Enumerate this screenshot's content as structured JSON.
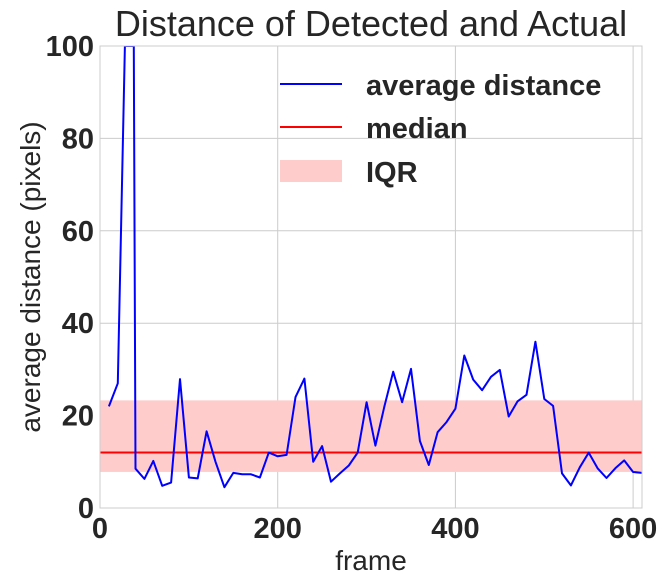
{
  "chart_data": {
    "type": "line",
    "title": "Distance of Detected and Actual",
    "xlabel": "frame",
    "ylabel": "average distance (pixels)",
    "xlim": [
      0,
      610
    ],
    "ylim": [
      0,
      100
    ],
    "x_ticks": [
      0,
      200,
      400,
      600
    ],
    "y_ticks": [
      0,
      20,
      40,
      60,
      80,
      100
    ],
    "grid": true,
    "legend_position": "top-right",
    "colors": {
      "average_line": "#0000ff",
      "median_line": "#ff0000",
      "iqr_fill": "#ffcccc"
    },
    "legend": {
      "average_label": "average distance",
      "median_label": "median",
      "iqr_label": "IQR"
    },
    "median": 12,
    "iqr": [
      7.8,
      23.3
    ],
    "series": [
      {
        "name": "average distance",
        "x": [
          10,
          20,
          28,
          38,
          40,
          50,
          60,
          70,
          80,
          90,
          100,
          110,
          120,
          130,
          140,
          150,
          160,
          170,
          180,
          190,
          200,
          210,
          220,
          230,
          240,
          250,
          260,
          270,
          280,
          290,
          300,
          310,
          320,
          330,
          340,
          350,
          360,
          370,
          380,
          390,
          400,
          410,
          420,
          430,
          440,
          450,
          460,
          470,
          480,
          490,
          500,
          510,
          520,
          530,
          540,
          550,
          560,
          570,
          580,
          590,
          600,
          610
        ],
        "y": [
          22,
          27,
          100,
          100,
          8.5,
          6.3,
          10.2,
          4.8,
          5.5,
          27.9,
          6.6,
          6.4,
          16.6,
          10,
          4.5,
          7.6,
          7.3,
          7.3,
          6.6,
          12,
          11.2,
          11.5,
          24,
          28,
          10,
          13.4,
          5.7,
          7.5,
          9.2,
          12,
          22.9,
          13.5,
          21.9,
          29.5,
          22.9,
          30.1,
          14.5,
          9.3,
          16.4,
          18.6,
          21.5,
          33,
          27.8,
          25.5,
          28.4,
          29.9,
          19.8,
          23.1,
          24.5,
          36,
          23.6,
          22.1,
          7.5,
          4.9,
          8.8,
          12,
          8.6,
          6.5,
          8.6,
          10.3,
          7.8,
          7.6
        ]
      }
    ]
  }
}
